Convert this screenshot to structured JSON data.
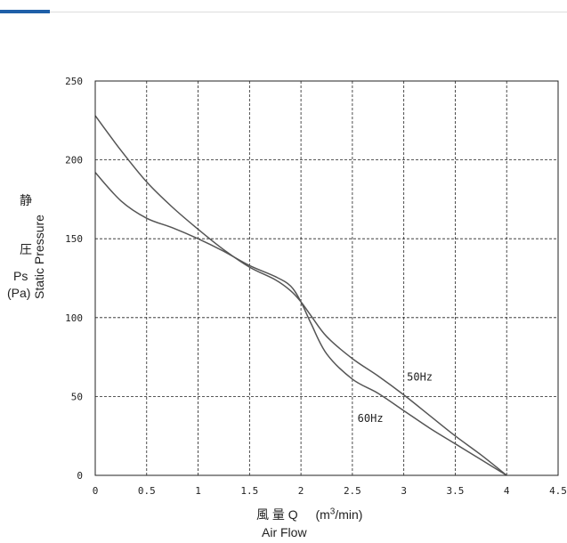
{
  "colors": {
    "accent": "#1f5fa8",
    "curve": "#555555",
    "grid": "#222222"
  },
  "chart_data": {
    "type": "line",
    "xlim": [
      0,
      4.5
    ],
    "ylim": [
      0,
      250
    ],
    "x_ticks": [
      "0",
      "0.5",
      "1",
      "1.5",
      "2",
      "2.5",
      "3",
      "3.5",
      "4",
      "4.5"
    ],
    "y_ticks": [
      "0",
      "50",
      "100",
      "150",
      "200",
      "250"
    ],
    "grid": "dashed",
    "ylabel": {
      "kanji_top": "静",
      "kanji_bottom": "圧",
      "symbol": "Ps",
      "unit": "(Pa)",
      "english": "Static Pressure"
    },
    "xlabel": {
      "kanji": "風 量 Q",
      "unit_prefix": "(m",
      "unit_sup": "3",
      "unit_suffix": "/min)",
      "english": "Air Flow"
    },
    "series": [
      {
        "name": "50Hz",
        "x": [
          0,
          0.25,
          0.5,
          0.75,
          1.0,
          1.25,
          1.5,
          1.75,
          1.9,
          2.0,
          2.1,
          2.25,
          2.5,
          2.75,
          3.0,
          3.25,
          3.5,
          3.75,
          4.0
        ],
        "y": [
          228,
          206,
          186,
          170,
          156,
          143,
          132,
          124,
          117,
          110,
          101,
          88,
          74,
          63,
          51,
          38,
          25,
          13,
          0
        ]
      },
      {
        "name": "60Hz",
        "x": [
          0,
          0.25,
          0.5,
          0.75,
          1.0,
          1.25,
          1.5,
          1.75,
          1.9,
          2.0,
          2.1,
          2.25,
          2.5,
          2.75,
          3.0,
          3.25,
          3.5,
          3.75,
          4.0
        ],
        "y": [
          192,
          174,
          163,
          157,
          150,
          142,
          133,
          126,
          120,
          110,
          96,
          77,
          61,
          52,
          41,
          30,
          20,
          10,
          0
        ]
      }
    ]
  }
}
